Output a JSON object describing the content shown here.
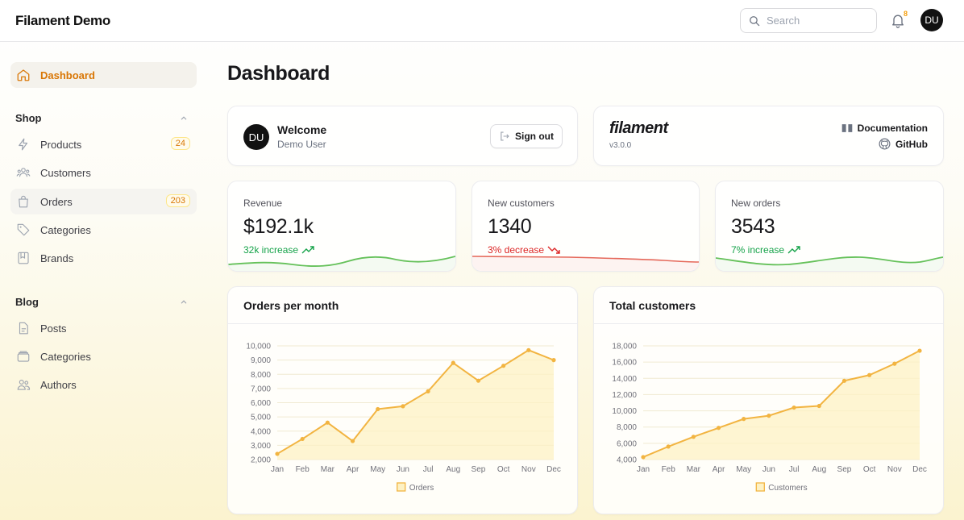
{
  "header": {
    "brand": "Filament Demo",
    "search_placeholder": "Search",
    "notification_count": "8",
    "user_initials": "DU"
  },
  "sidebar": {
    "dashboard": "Dashboard",
    "shop": {
      "label": "Shop",
      "items": [
        {
          "label": "Products",
          "badge": "24",
          "icon": "bolt-icon"
        },
        {
          "label": "Customers",
          "badge": "",
          "icon": "users-icon"
        },
        {
          "label": "Orders",
          "badge": "203",
          "icon": "shopping-bag-icon"
        },
        {
          "label": "Categories",
          "badge": "",
          "icon": "tag-icon"
        },
        {
          "label": "Brands",
          "badge": "",
          "icon": "bookmark-square-icon"
        }
      ]
    },
    "blog": {
      "label": "Blog",
      "items": [
        {
          "label": "Posts",
          "icon": "document-icon"
        },
        {
          "label": "Categories",
          "icon": "folder-icon"
        },
        {
          "label": "Authors",
          "icon": "user-group-icon"
        }
      ]
    }
  },
  "page": {
    "title": "Dashboard"
  },
  "welcome": {
    "initials": "DU",
    "title": "Welcome",
    "user": "Demo User",
    "signout": "Sign out"
  },
  "filament": {
    "logo": "filament",
    "version": "v3.0.0",
    "documentation": "Documentation",
    "github": "GitHub"
  },
  "stats": [
    {
      "label": "Revenue",
      "value": "$192.1k",
      "change": "32k increase",
      "trend": "up",
      "color": "#16a34a"
    },
    {
      "label": "New customers",
      "value": "1340",
      "change": "3% decrease",
      "trend": "down",
      "color": "#dc2626"
    },
    {
      "label": "New orders",
      "value": "3543",
      "change": "7% increase",
      "trend": "up",
      "color": "#16a34a"
    }
  ],
  "colors": {
    "accent": "#d97706",
    "chart_line": "#f2b441",
    "chart_fill": "#fdf1c4",
    "success": "#16a34a",
    "danger": "#dc2626"
  },
  "chart_data": [
    {
      "type": "line",
      "title": "Orders per month",
      "categories": [
        "Jan",
        "Feb",
        "Mar",
        "Apr",
        "May",
        "Jun",
        "Jul",
        "Aug",
        "Sep",
        "Oct",
        "Nov",
        "Dec"
      ],
      "series": [
        {
          "name": "Orders",
          "values": [
            2400,
            3450,
            4600,
            3300,
            5550,
            5750,
            6800,
            8800,
            7550,
            8600,
            9700,
            9000
          ]
        }
      ],
      "ylim": [
        2000,
        10000
      ],
      "yticks": [
        "2,000",
        "3,000",
        "4,000",
        "5,000",
        "6,000",
        "7,000",
        "8,000",
        "9,000",
        "10,000"
      ],
      "ytick_values": [
        2000,
        3000,
        4000,
        5000,
        6000,
        7000,
        8000,
        9000,
        10000
      ],
      "legend": "bottom-center",
      "grid": true
    },
    {
      "type": "line",
      "title": "Total customers",
      "categories": [
        "Jan",
        "Feb",
        "Mar",
        "Apr",
        "May",
        "Jun",
        "Jul",
        "Aug",
        "Sep",
        "Oct",
        "Nov",
        "Dec"
      ],
      "series": [
        {
          "name": "Customers",
          "values": [
            4300,
            5600,
            6800,
            7900,
            9000,
            9400,
            10400,
            10600,
            13700,
            14400,
            15800,
            17400
          ]
        }
      ],
      "ylim": [
        4000,
        18000
      ],
      "yticks": [
        "4,000",
        "6,000",
        "8,000",
        "10,000",
        "12,000",
        "14,000",
        "16,000",
        "18,000"
      ],
      "ytick_values": [
        4000,
        6000,
        8000,
        10000,
        12000,
        14000,
        16000,
        18000
      ],
      "legend": "bottom-center",
      "grid": true
    }
  ]
}
